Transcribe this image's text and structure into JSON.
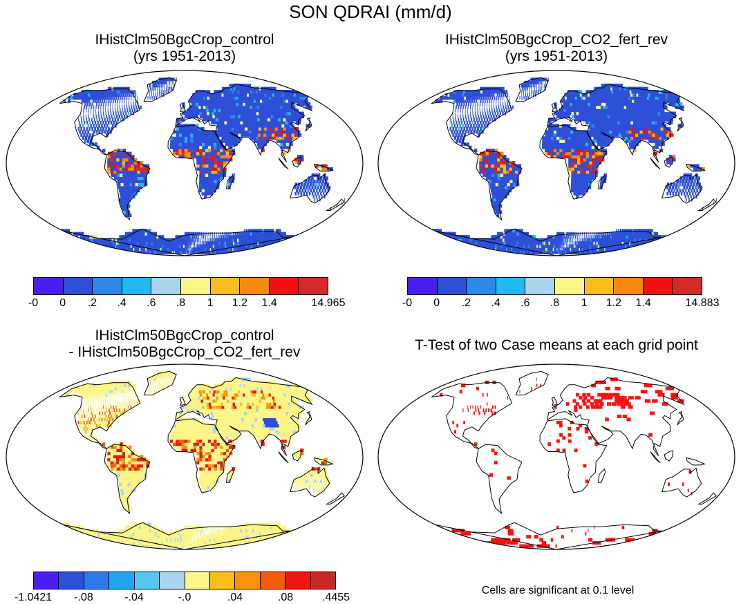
{
  "title": "SON QDRAI (mm/d)",
  "panels": {
    "top_left": {
      "title_line1": "IHistClm50BgcCrop_control",
      "title_line2": "(yrs 1951-2013)",
      "colorbar_ticks": [
        "-0",
        "0",
        ".2",
        ".4",
        ".6",
        ".8",
        "1",
        "1.2",
        "1.4",
        "14.965"
      ]
    },
    "top_right": {
      "title_line1": "IHistClm50BgcCrop_CO2_fert_rev",
      "title_line2": "(yrs 1951-2013)",
      "colorbar_ticks": [
        "-0",
        "0",
        ".2",
        ".4",
        ".6",
        ".8",
        "1",
        "1.2",
        "1.4",
        "14.883"
      ]
    },
    "bottom_left": {
      "title_line1": "IHistClm50BgcCrop_control",
      "title_line2": "- IHistClm50BgcCrop_CO2_fert_rev",
      "colorbar_ticks": [
        "-1.0421",
        "-.08",
        "-.04",
        "-.0",
        ".04",
        ".08",
        ".4455"
      ]
    },
    "bottom_right": {
      "title_line1": "T-Test of two Case means at each grid point",
      "note": "Cells are significant at 0.1 level"
    }
  },
  "colors": {
    "value_scale": [
      "#4a1ef0",
      "#2e4fd8",
      "#2f88e8",
      "#1fbbf0",
      "#a9d6ee",
      "#fbf58a",
      "#f8be1c",
      "#f68a0c",
      "#f21010",
      "#d42a2a"
    ],
    "diff_scale": [
      "#4a1ef0",
      "#2e4fd8",
      "#2f79e6",
      "#1ea6f0",
      "#55c5f2",
      "#a9d6ee",
      "#fbf58a",
      "#f8be1c",
      "#f6920c",
      "#f25c0c",
      "#ee1515",
      "#c82828"
    ],
    "significant": "#ff1010"
  }
}
